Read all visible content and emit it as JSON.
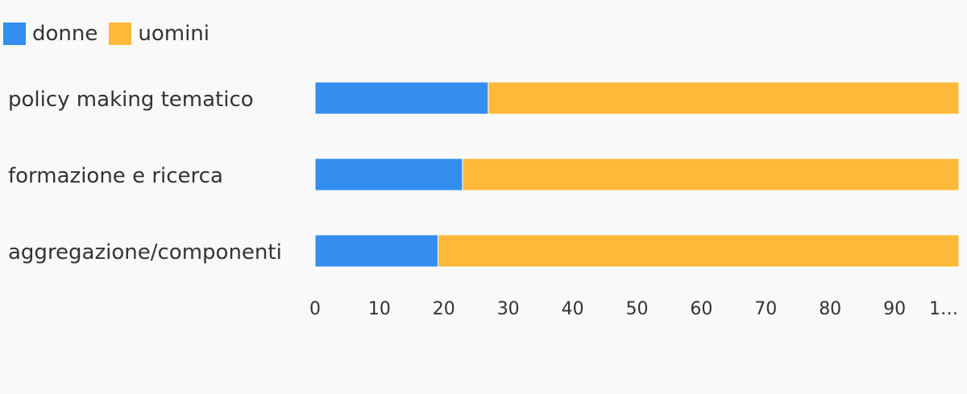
{
  "chart_data": {
    "type": "bar",
    "orientation": "horizontal",
    "stacked": true,
    "categories": [
      "policy making tematico",
      "formazione e ricerca",
      "aggregazione/componenti"
    ],
    "series": [
      {
        "name": "donne",
        "color": "#348ef0",
        "values": [
          26.9,
          22.9,
          19.1
        ]
      },
      {
        "name": "uomini",
        "color": "#ffb938",
        "values": [
          73.1,
          77.1,
          80.9
        ]
      }
    ],
    "xlim": [
      0,
      100
    ],
    "x_ticks": [
      "0",
      "10",
      "20",
      "30",
      "40",
      "50",
      "60",
      "70",
      "80",
      "90",
      "1…"
    ],
    "legend_position": "top-left",
    "grid": false
  }
}
